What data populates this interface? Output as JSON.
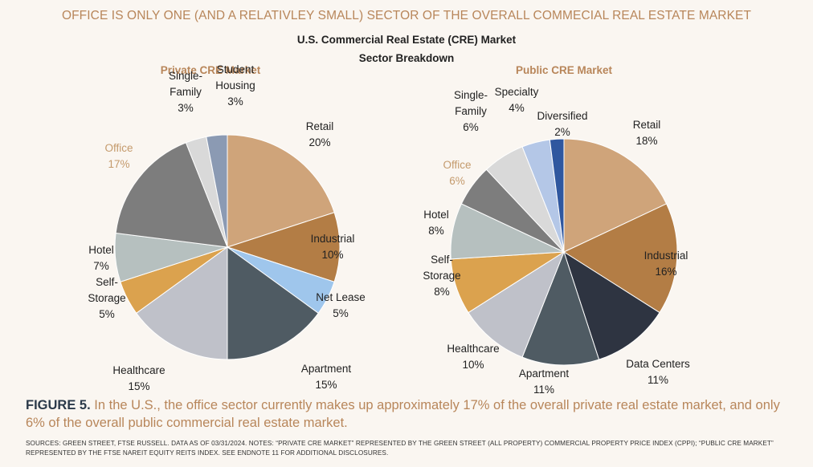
{
  "headline": "OFFICE IS ONLY ONE (AND A RELATIVLEY SMALL) SECTOR OF THE OVERALL COMMECIAL REAL ESTATE MARKET",
  "title_line1": "U.S. Commercial Real Estate (CRE) Market",
  "title_line2": "Sector Breakdown",
  "caption": {
    "figure_label": "FIGURE 5.",
    "text": "In the U.S., the office sector currently makes up approximately 17% of the overall private real estate market, and only 6% of the overall public commercial real estate market."
  },
  "sources": "SOURCES: GREEN STREET, FTSE RUSSELL. DATA AS OF 03/31/2024. NOTES: “PRIVATE CRE MARKET” REPRESENTED BY THE GREEN STREET (ALL PROPERTY) COMMERCIAL PROPERTY PRICE INDEX (CPPI); “PUBLIC CRE MARKET” REPRESENTED BY THE FTSE NAREIT EQUITY REITS INDEX. SEE ENDNOTE 11 FOR ADDITIONAL DISCLOSURES.",
  "chart_data": [
    {
      "type": "pie",
      "title": "Private CRE Market",
      "slices": [
        {
          "label": "Retail",
          "value": 20,
          "display": "20%",
          "color": "#cfa47a"
        },
        {
          "label": "Industrial",
          "value": 10,
          "display": "10%",
          "color": "#b37d45"
        },
        {
          "label": "Net Lease",
          "value": 5,
          "display": "5%",
          "color": "#9fc6ec"
        },
        {
          "label": "Apartment",
          "value": 15,
          "display": "15%",
          "color": "#4f5b63"
        },
        {
          "label": "Healthcare",
          "value": 15,
          "display": "15%",
          "color": "#bfc1c9"
        },
        {
          "label": "Self-Storage",
          "value": 5,
          "display": "5%",
          "color": "#dba24e"
        },
        {
          "label": "Hotel",
          "value": 7,
          "display": "7%",
          "color": "#b6c0bf"
        },
        {
          "label": "Office",
          "value": 17,
          "display": "17%",
          "color": "#7d7d7d",
          "highlight": true
        },
        {
          "label": "Single-Family",
          "value": 3,
          "display": "3%",
          "color": "#d9d9d9"
        },
        {
          "label": "Student Housing",
          "value": 3,
          "display": "3%",
          "color": "#8b9ab3"
        }
      ]
    },
    {
      "type": "pie",
      "title": "Public CRE Market",
      "slices": [
        {
          "label": "Retail",
          "value": 18,
          "display": "18%",
          "color": "#cfa47a"
        },
        {
          "label": "Industrial",
          "value": 16,
          "display": "16%",
          "color": "#b37d45"
        },
        {
          "label": "Data Centers",
          "value": 11,
          "display": "11%",
          "color": "#2e3441"
        },
        {
          "label": "Apartment",
          "value": 11,
          "display": "11%",
          "color": "#4f5b63"
        },
        {
          "label": "Healthcare",
          "value": 10,
          "display": "10%",
          "color": "#bfc1c9"
        },
        {
          "label": "Self-Storage",
          "value": 8,
          "display": "8%",
          "color": "#dba24e"
        },
        {
          "label": "Hotel",
          "value": 8,
          "display": "8%",
          "color": "#b6c0bf"
        },
        {
          "label": "Office",
          "value": 6,
          "display": "6%",
          "color": "#7d7d7d",
          "highlight": true
        },
        {
          "label": "Single-Family",
          "value": 6,
          "display": "6%",
          "color": "#d9d9d9"
        },
        {
          "label": "Specialty",
          "value": 4,
          "display": "4%",
          "color": "#b4c7e7"
        },
        {
          "label": "Diversified",
          "value": 2,
          "display": "2%",
          "color": "#2f579f"
        }
      ]
    }
  ]
}
